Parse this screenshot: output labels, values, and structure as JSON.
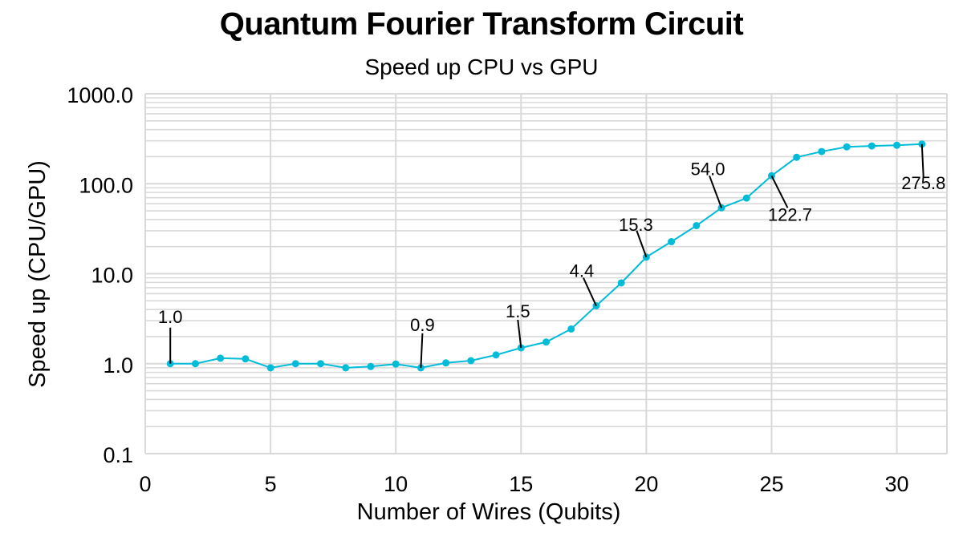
{
  "chart_data": {
    "type": "line",
    "title": "Quantum Fourier Transform Circuit",
    "subtitle": "Speed up CPU vs GPU",
    "xlabel": "Number of Wires (Qubits)",
    "ylabel": "Speed up (CPU/GPU)",
    "xlim": [
      0,
      32
    ],
    "ylim": [
      0.1,
      1000
    ],
    "yscale": "log",
    "grid": true,
    "x_ticks": [
      "0",
      "5",
      "10",
      "15",
      "20",
      "25",
      "30"
    ],
    "y_ticks": [
      "0.1",
      "1.0",
      "10.0",
      "100.0",
      "1000.0"
    ],
    "line_color": "#00bcd8",
    "series": [
      {
        "x": [
          1,
          2,
          3,
          4,
          5,
          6,
          7,
          8,
          9,
          10,
          11,
          12,
          13,
          14,
          15,
          16,
          17,
          18,
          19,
          20,
          21,
          22,
          23,
          24,
          25,
          26,
          27,
          28,
          29,
          30,
          31
        ],
        "values": [
          1.0,
          1.0,
          1.15,
          1.13,
          0.9,
          1.0,
          1.0,
          0.9,
          0.93,
          0.99,
          0.9,
          1.02,
          1.08,
          1.25,
          1.5,
          1.74,
          2.43,
          4.4,
          7.9,
          15.3,
          22.7,
          34.2,
          54.0,
          69.3,
          122.7,
          197,
          228,
          257,
          263,
          268,
          275.8
        ]
      }
    ],
    "annotations": [
      {
        "x": 1,
        "text": "1.0"
      },
      {
        "x": 11,
        "text": "0.9"
      },
      {
        "x": 15,
        "text": "1.5"
      },
      {
        "x": 18,
        "text": "4.4"
      },
      {
        "x": 20,
        "text": "15.3"
      },
      {
        "x": 23,
        "text": "54.0"
      },
      {
        "x": 25,
        "text": "122.7"
      },
      {
        "x": 31,
        "text": "275.8"
      }
    ]
  }
}
